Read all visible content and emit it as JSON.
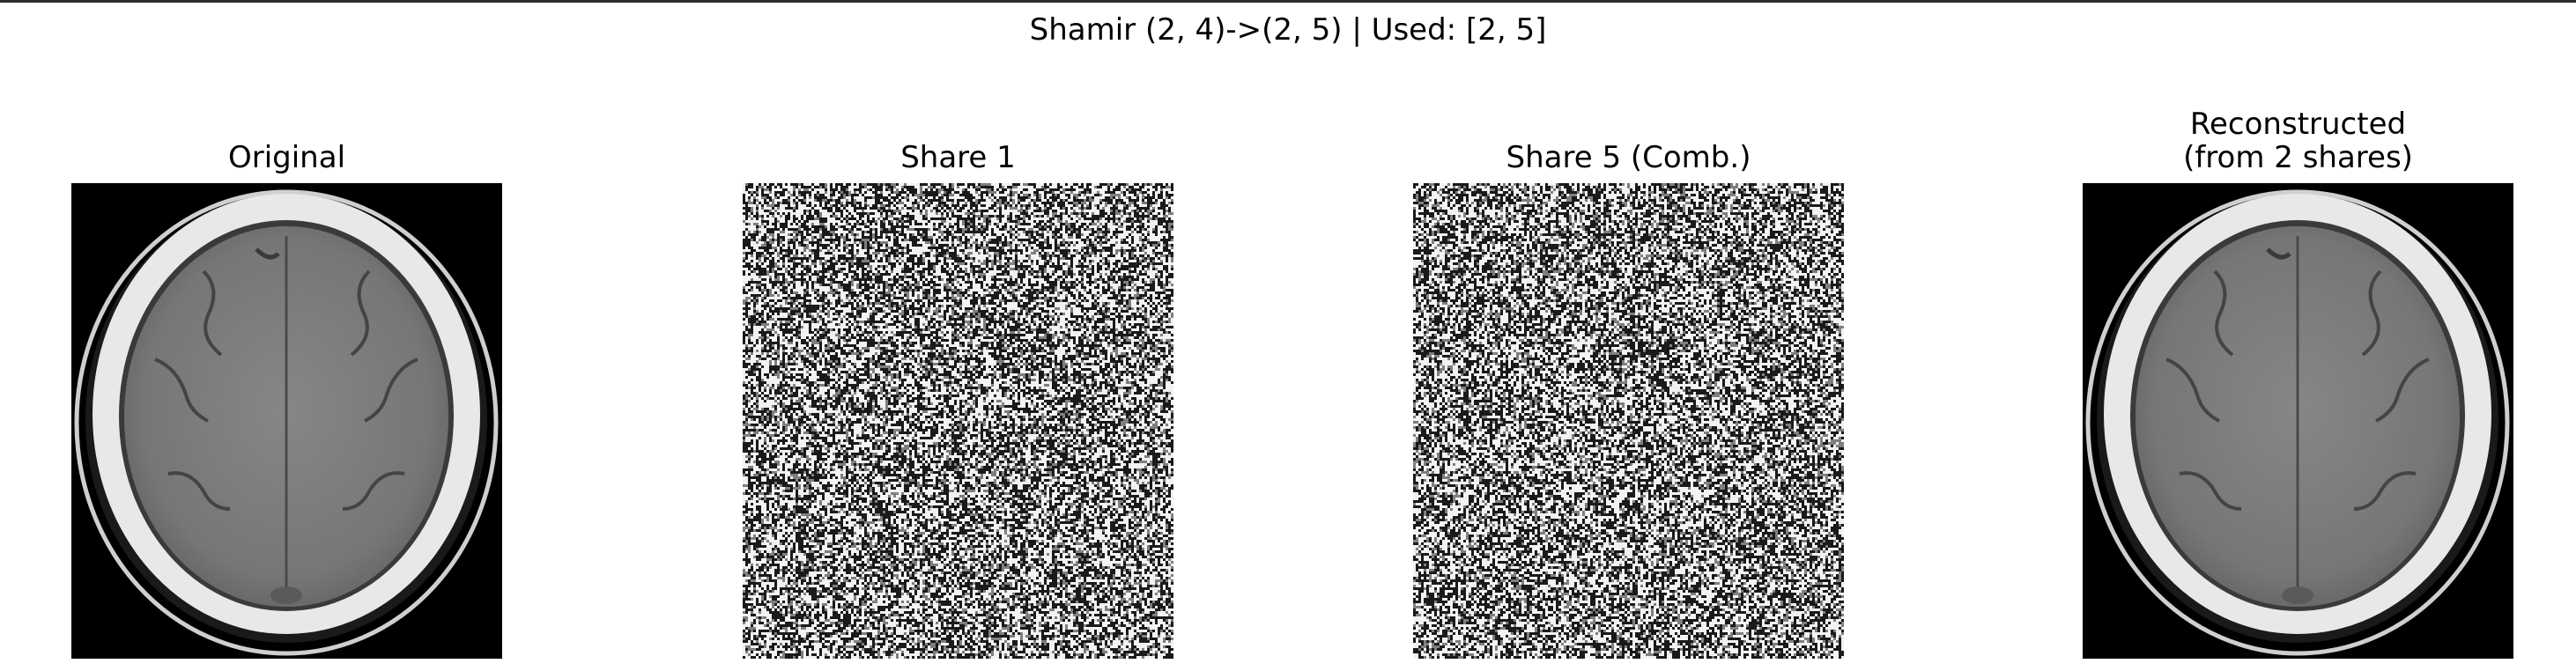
{
  "figure": {
    "suptitle": "Shamir (2, 4)->(2, 5) | Used: [2, 5]"
  },
  "panels": [
    {
      "title": "Original",
      "kind": "ct-scan"
    },
    {
      "title": "Share 1",
      "kind": "noise"
    },
    {
      "title": "Share 5 (Comb.)",
      "kind": "noise"
    },
    {
      "title": "Reconstructed\n(from 2 shares)",
      "kind": "ct-scan"
    }
  ],
  "colors": {
    "background": "#000000",
    "skull": "#e8e8e8",
    "brain": "#8a8a8a",
    "noise_light": "#f2f2f2",
    "noise_dark": "#1a1a1a"
  }
}
